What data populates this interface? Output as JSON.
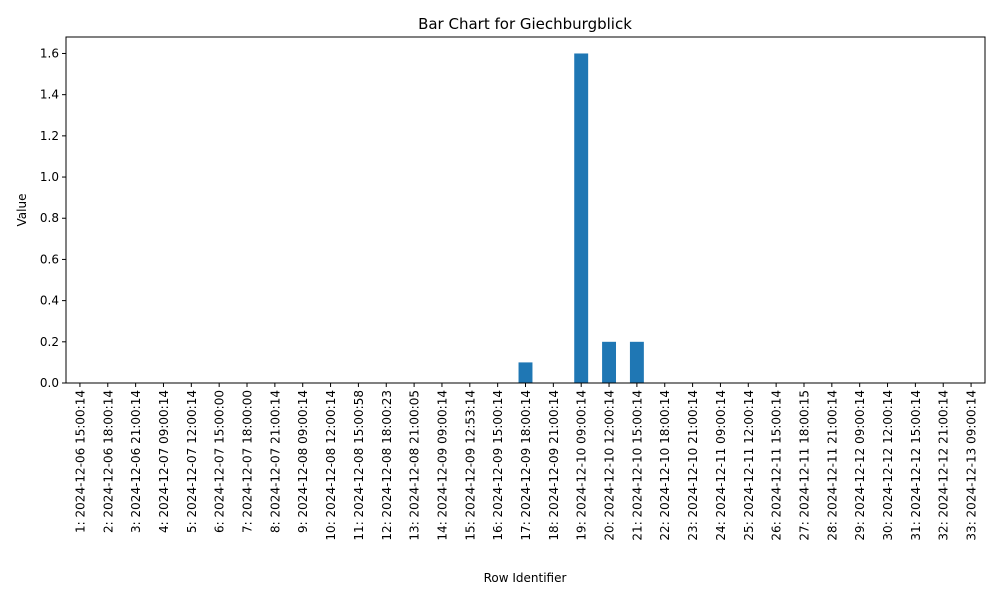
{
  "chart_data": {
    "type": "bar",
    "title": "Bar Chart for Giechburgblick",
    "xlabel": "Row Identifier",
    "ylabel": "Value",
    "ylim": [
      0,
      1.68
    ],
    "yticks": [
      "0.0",
      "0.2",
      "0.4",
      "0.6",
      "0.8",
      "1.0",
      "1.2",
      "1.4",
      "1.6"
    ],
    "grid": false,
    "legend": "none",
    "bar_color": "#1f77b4",
    "categories": [
      "1: 2024-12-06 15:00:14",
      "2: 2024-12-06 18:00:14",
      "3: 2024-12-06 21:00:14",
      "4: 2024-12-07 09:00:14",
      "5: 2024-12-07 12:00:14",
      "6: 2024-12-07 15:00:00",
      "7: 2024-12-07 18:00:00",
      "8: 2024-12-07 21:00:14",
      "9: 2024-12-08 09:00:14",
      "10: 2024-12-08 12:00:14",
      "11: 2024-12-08 15:00:58",
      "12: 2024-12-08 18:00:23",
      "13: 2024-12-08 21:00:05",
      "14: 2024-12-09 09:00:14",
      "15: 2024-12-09 12:53:14",
      "16: 2024-12-09 15:00:14",
      "17: 2024-12-09 18:00:14",
      "18: 2024-12-09 21:00:14",
      "19: 2024-12-10 09:00:14",
      "20: 2024-12-10 12:00:14",
      "21: 2024-12-10 15:00:14",
      "22: 2024-12-10 18:00:14",
      "23: 2024-12-10 21:00:14",
      "24: 2024-12-11 09:00:14",
      "25: 2024-12-11 12:00:14",
      "26: 2024-12-11 15:00:14",
      "27: 2024-12-11 18:00:15",
      "28: 2024-12-11 21:00:14",
      "29: 2024-12-12 09:00:14",
      "30: 2024-12-12 12:00:14",
      "31: 2024-12-12 15:00:14",
      "32: 2024-12-12 21:00:14",
      "33: 2024-12-13 09:00:14"
    ],
    "values": [
      0,
      0,
      0,
      0,
      0,
      0,
      0,
      0,
      0,
      0,
      0,
      0,
      0,
      0,
      0,
      0,
      0.1,
      0,
      1.6,
      0.2,
      0.2,
      0,
      0,
      0,
      0,
      0,
      0,
      0,
      0,
      0,
      0,
      0,
      0
    ]
  }
}
